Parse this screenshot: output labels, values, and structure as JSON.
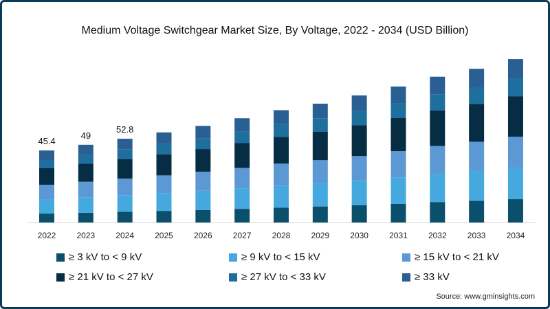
{
  "chart_data": {
    "type": "bar",
    "stacked": true,
    "title": "Medium Voltage Switchgear Market Size, By Voltage, 2022 - 2034 (USD Billion)",
    "xlabel": "",
    "ylabel": "",
    "ylim": [
      0,
      110
    ],
    "grid": false,
    "legend_position": "bottom",
    "categories": [
      "2022",
      "2023",
      "2024",
      "2025",
      "2026",
      "2027",
      "2028",
      "2029",
      "2030",
      "2031",
      "2032",
      "2033",
      "2034"
    ],
    "series": [
      {
        "name": "≥ 3 kV to < 9 kV",
        "color": "#0a4f6b",
        "values": [
          5.6,
          6.1,
          6.7,
          7.3,
          7.9,
          8.6,
          9.4,
          10.1,
          10.9,
          11.8,
          12.9,
          13.7,
          14.7
        ]
      },
      {
        "name": "≥ 9 kV to < 15 kV",
        "color": "#45a9e0",
        "values": [
          9.1,
          9.8,
          10.5,
          11.2,
          12.1,
          13.0,
          13.9,
          14.7,
          15.6,
          16.7,
          17.8,
          18.8,
          19.9
        ]
      },
      {
        "name": "≥ 15 kV to < 21 kV",
        "color": "#5b98d4",
        "values": [
          9.1,
          9.8,
          10.5,
          11.2,
          12.0,
          12.8,
          13.8,
          14.5,
          15.4,
          16.5,
          17.5,
          18.4,
          19.5
        ]
      },
      {
        "name": "≥ 21 kV to < 27 kV",
        "color": "#062d43",
        "values": [
          10.4,
          11.3,
          12.3,
          13.3,
          14.3,
          15.6,
          16.9,
          18.0,
          19.4,
          20.8,
          22.5,
          23.9,
          25.5
        ]
      },
      {
        "name": "≥ 27 kV to < 33 kV",
        "color": "#1e6f9d",
        "values": [
          5.2,
          5.6,
          6.0,
          6.5,
          6.9,
          7.4,
          8.0,
          8.4,
          9.0,
          9.5,
          10.2,
          10.7,
          11.3
        ]
      },
      {
        "name": "≥ 33 kV",
        "color": "#2a5f93",
        "values": [
          6.0,
          6.4,
          6.8,
          7.3,
          7.7,
          8.3,
          8.8,
          9.2,
          9.8,
          10.4,
          11.0,
          11.4,
          12.1
        ]
      }
    ],
    "data_labels": [
      "45.4",
      "49",
      "52.8",
      "",
      "",
      "",
      "",
      "",
      "",
      "",
      "",
      "",
      ""
    ]
  },
  "source": "Source: www.gminsights.com"
}
